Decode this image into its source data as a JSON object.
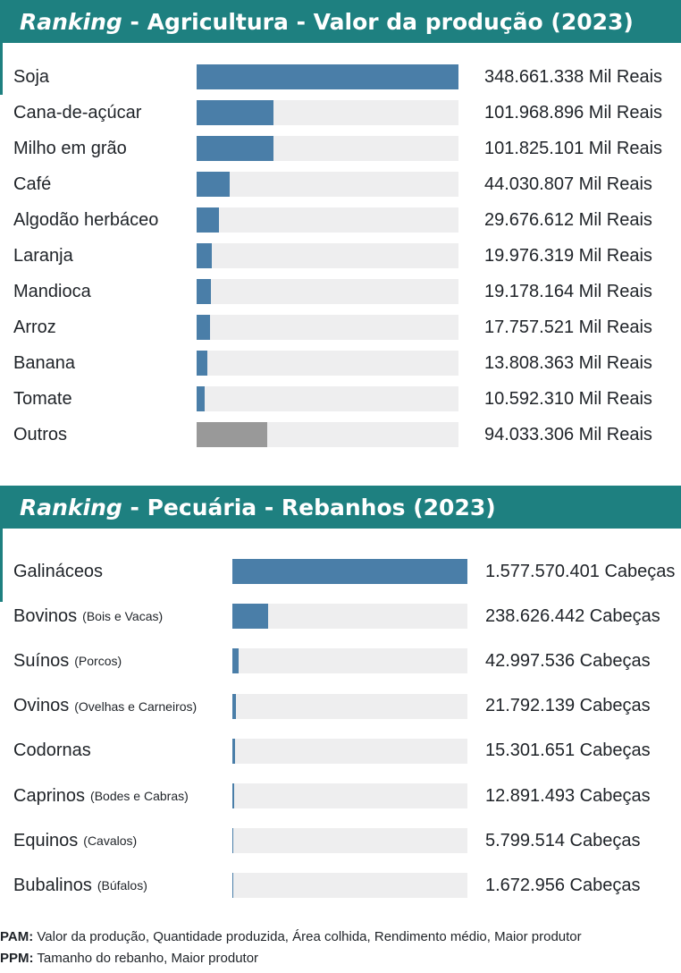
{
  "agriculture": {
    "title_italic": "Ranking",
    "title_rest": " - Agricultura - Valor da produção (2023)",
    "colors": {
      "bar": "#4a7ea8",
      "other_bar": "#999999",
      "track": "#eeeeef",
      "header": "#1e8080"
    }
  },
  "livestock": {
    "title_italic": "Ranking",
    "title_rest": " - Pecuária - Rebanhos (2023)",
    "colors": {
      "bar": "#4a7ea8",
      "track": "#eeeeef",
      "header": "#1e8080"
    }
  },
  "chart_data": [
    {
      "type": "bar",
      "orientation": "horizontal",
      "title": "Ranking - Agricultura - Valor da produção (2023)",
      "unit": "Mil Reais",
      "categories": [
        "Soja",
        "Cana-de-açúcar",
        "Milho em grão",
        "Café",
        "Algodão herbáceo",
        "Laranja",
        "Mandioca",
        "Arroz",
        "Banana",
        "Tomate",
        "Outros"
      ],
      "values": [
        348661338,
        101968896,
        101825101,
        44030807,
        29676612,
        19976319,
        19178164,
        17757521,
        13808363,
        10592310,
        94033306
      ],
      "value_labels": [
        "348.661.338 Mil Reais",
        "101.968.896 Mil Reais",
        "101.825.101 Mil Reais",
        "44.030.807 Mil Reais",
        "29.676.612 Mil Reais",
        "19.976.319 Mil Reais",
        "19.178.164 Mil Reais",
        "17.757.521 Mil Reais",
        "13.808.363 Mil Reais",
        "10.592.310 Mil Reais",
        "94.033.306 Mil Reais"
      ],
      "xlim": [
        0,
        348661338
      ]
    },
    {
      "type": "bar",
      "orientation": "horizontal",
      "title": "Ranking - Pecuária - Rebanhos (2023)",
      "unit": "Cabeças",
      "categories": [
        "Galináceos",
        "Bovinos",
        "Suínos",
        "Ovinos",
        "Codornas",
        "Caprinos",
        "Equinos",
        "Bubalinos"
      ],
      "category_notes": [
        "",
        "(Bois e Vacas)",
        "(Porcos)",
        "(Ovelhas e Carneiros)",
        "",
        "(Bodes e Cabras)",
        "(Cavalos)",
        "(Búfalos)"
      ],
      "values": [
        1577570401,
        238626442,
        42997536,
        21792139,
        15301651,
        12891493,
        5799514,
        1672956
      ],
      "value_labels": [
        "1.577.570.401 Cabeças",
        "238.626.442 Cabeças",
        "42.997.536 Cabeças",
        "21.792.139 Cabeças",
        "15.301.651 Cabeças",
        "12.891.493 Cabeças",
        "5.799.514 Cabeças",
        "1.672.956 Cabeças"
      ],
      "xlim": [
        0,
        1577570401
      ]
    }
  ],
  "footnotes": [
    {
      "label": "PAM:",
      "text": " Valor da produção, Quantidade produzida, Área colhida, Rendimento médio, Maior produtor"
    },
    {
      "label": "PPM:",
      "text": " Tamanho do rebanho, Maior produtor"
    }
  ]
}
